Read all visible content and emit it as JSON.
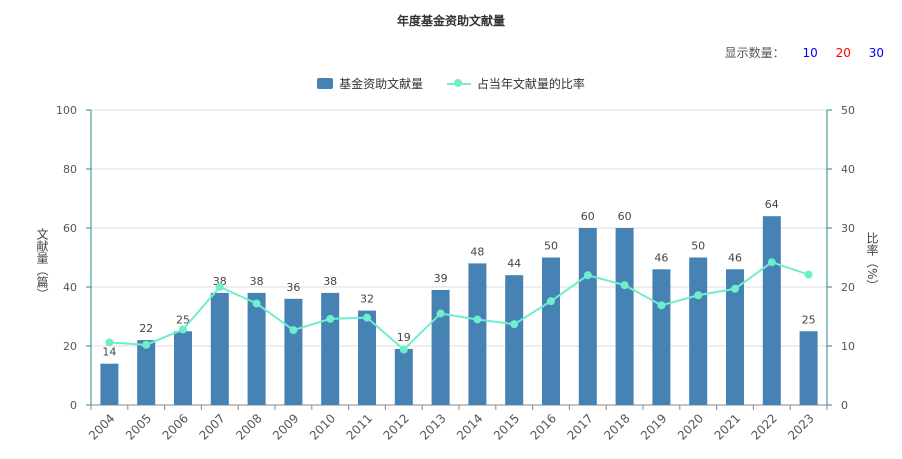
{
  "chart_data": {
    "type": "bar",
    "title": "年度基金资助文献量",
    "categories": [
      "2004",
      "2005",
      "2006",
      "2007",
      "2008",
      "2009",
      "2010",
      "2011",
      "2012",
      "2013",
      "2014",
      "2015",
      "2016",
      "2017",
      "2018",
      "2019",
      "2020",
      "2021",
      "2022",
      "2023"
    ],
    "series": [
      {
        "name": "基金资助文献量",
        "type": "bar",
        "axis": "left",
        "color": "#4682b4",
        "values": [
          14,
          22,
          25,
          38,
          38,
          36,
          38,
          32,
          19,
          39,
          48,
          44,
          50,
          60,
          60,
          46,
          50,
          46,
          64,
          25
        ]
      },
      {
        "name": "占当年文献量的比率",
        "type": "line",
        "axis": "right",
        "color": "#6eeecb",
        "values": [
          10.6,
          10.2,
          12.8,
          20.0,
          17.2,
          12.7,
          14.6,
          14.8,
          9.4,
          15.5,
          14.5,
          13.7,
          17.6,
          22.0,
          20.3,
          16.9,
          18.6,
          19.7,
          24.2,
          22.1
        ]
      }
    ],
    "ylabel_left": "文献量（篇）",
    "ylabel_right": "比率（%）",
    "ylim_left": [
      0,
      100
    ],
    "ylim_right": [
      0,
      50
    ],
    "yticks_left": [
      "0",
      "20",
      "40",
      "60",
      "80",
      "100"
    ],
    "yticks_right": [
      "0",
      "10",
      "20",
      "30",
      "40",
      "50"
    ],
    "grid": true,
    "legend_position": "top-center"
  },
  "display_count": {
    "label": "显示数量：",
    "options": [
      {
        "text": "10",
        "color": "#0000ff"
      },
      {
        "text": "20",
        "color": "#ff0000"
      },
      {
        "text": "30",
        "color": "#0000ff"
      }
    ]
  }
}
